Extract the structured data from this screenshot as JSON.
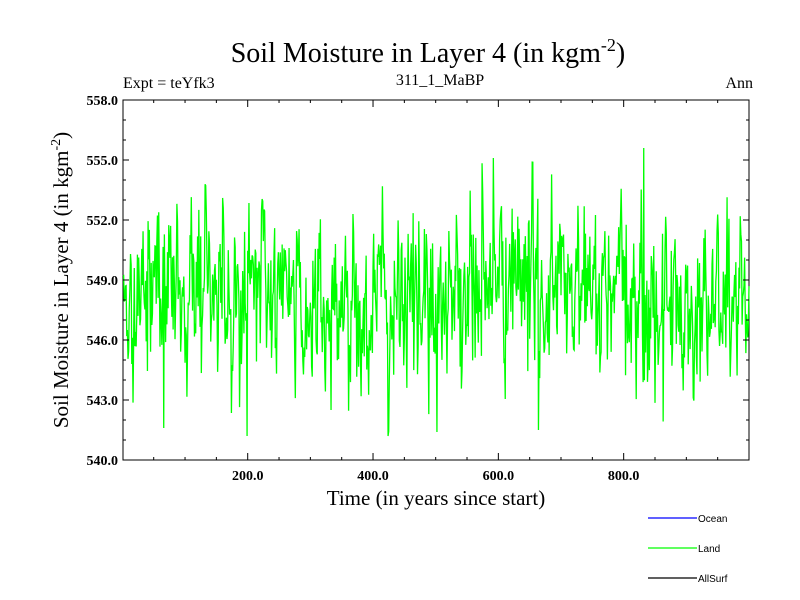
{
  "chart_data": {
    "type": "line",
    "title": {
      "main": "Soil Moisture in Layer 4 (in kgm",
      "superscript": "-2",
      "close": ")"
    },
    "subtitle_left": "Expt = teYfk3",
    "subtitle_center": "311_1_MaBP",
    "subtitle_right": "Ann",
    "xlabel": "Time (in years since start)",
    "ylabel": {
      "main": "Soil Moisture in Layer 4 (in kgm",
      "superscript": "-2",
      "close": ")"
    },
    "xlim": [
      1,
      1000
    ],
    "ylim": [
      540.0,
      558.0
    ],
    "xticks": [
      200,
      400,
      600,
      800
    ],
    "xtick_labels": [
      "200.0",
      "400.0",
      "600.0",
      "800.0"
    ],
    "yticks": [
      540,
      543,
      546,
      549,
      552,
      555,
      558
    ],
    "ytick_labels": [
      "540.0",
      "543.0",
      "546.0",
      "549.0",
      "552.0",
      "555.0",
      "558.0"
    ],
    "series": [
      {
        "name": "Ocean",
        "color": "#0000ff",
        "values": []
      },
      {
        "name": "Land",
        "color": "#00ff00",
        "mean": 548.2,
        "spread": 2.1,
        "min": 541.2,
        "max": 555.6,
        "n_points": 1000
      },
      {
        "name": "AllSurf",
        "color": "#000000",
        "values": []
      }
    ],
    "legend": {
      "placement": "bottom-right",
      "entries": [
        "Ocean",
        "Land",
        "AllSurf"
      ]
    }
  }
}
